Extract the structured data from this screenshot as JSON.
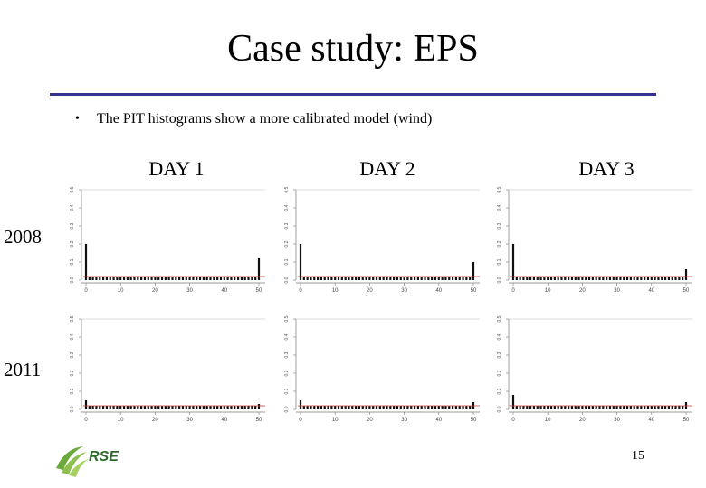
{
  "slide": {
    "title": "Case study: EPS",
    "bullet_symbol": "•",
    "bullet_text": "The PIT histograms show a more calibrated model (wind)",
    "day_labels": [
      "DAY 1",
      "DAY 2",
      "DAY 3"
    ],
    "year_labels": [
      "2008",
      "2011"
    ],
    "page_number": "15",
    "accent_color": "#34348f",
    "reference_line_color": "#cc3333"
  },
  "logo": {
    "text": "RSE",
    "icon": "rse-logo-swoosh"
  },
  "chart_data": [
    {
      "type": "bar",
      "panel": "2008-day1",
      "ylim": [
        0,
        0.5
      ],
      "yticks": [
        "0.0",
        "0.1",
        "0.2",
        "0.3",
        "0.4",
        "0.5"
      ],
      "xticks": [
        "0",
        "10",
        "20",
        "30",
        "40",
        "50"
      ],
      "reference": 0.02,
      "values": [
        0.2,
        0.02,
        0.02,
        0.02,
        0.02,
        0.02,
        0.02,
        0.02,
        0.02,
        0.02,
        0.02,
        0.02,
        0.02,
        0.02,
        0.02,
        0.02,
        0.02,
        0.02,
        0.02,
        0.02,
        0.02,
        0.02,
        0.02,
        0.02,
        0.02,
        0.02,
        0.02,
        0.02,
        0.02,
        0.02,
        0.02,
        0.02,
        0.02,
        0.02,
        0.02,
        0.02,
        0.02,
        0.02,
        0.02,
        0.02,
        0.02,
        0.02,
        0.02,
        0.02,
        0.02,
        0.02,
        0.02,
        0.02,
        0.02,
        0.02,
        0.12
      ]
    },
    {
      "type": "bar",
      "panel": "2008-day2",
      "ylim": [
        0,
        0.5
      ],
      "yticks": [
        "0.0",
        "0.1",
        "0.2",
        "0.3",
        "0.4",
        "0.5"
      ],
      "xticks": [
        "0",
        "10",
        "20",
        "30",
        "40",
        "50"
      ],
      "reference": 0.02,
      "values": [
        0.2,
        0.02,
        0.02,
        0.02,
        0.02,
        0.02,
        0.02,
        0.02,
        0.02,
        0.02,
        0.02,
        0.02,
        0.02,
        0.02,
        0.02,
        0.02,
        0.02,
        0.02,
        0.02,
        0.02,
        0.02,
        0.02,
        0.02,
        0.02,
        0.02,
        0.02,
        0.02,
        0.02,
        0.02,
        0.02,
        0.02,
        0.02,
        0.02,
        0.02,
        0.02,
        0.02,
        0.02,
        0.02,
        0.02,
        0.02,
        0.02,
        0.02,
        0.02,
        0.02,
        0.02,
        0.02,
        0.02,
        0.02,
        0.02,
        0.02,
        0.1
      ]
    },
    {
      "type": "bar",
      "panel": "2008-day3",
      "ylim": [
        0,
        0.5
      ],
      "yticks": [
        "0.0",
        "0.1",
        "0.2",
        "0.3",
        "0.4",
        "0.5"
      ],
      "xticks": [
        "0",
        "10",
        "20",
        "30",
        "40",
        "50"
      ],
      "reference": 0.02,
      "values": [
        0.2,
        0.02,
        0.02,
        0.02,
        0.02,
        0.02,
        0.02,
        0.02,
        0.02,
        0.02,
        0.02,
        0.02,
        0.02,
        0.02,
        0.02,
        0.02,
        0.02,
        0.02,
        0.02,
        0.02,
        0.02,
        0.02,
        0.02,
        0.02,
        0.02,
        0.02,
        0.02,
        0.02,
        0.02,
        0.02,
        0.02,
        0.02,
        0.02,
        0.02,
        0.02,
        0.02,
        0.02,
        0.02,
        0.02,
        0.02,
        0.02,
        0.02,
        0.02,
        0.02,
        0.02,
        0.02,
        0.02,
        0.02,
        0.02,
        0.02,
        0.06
      ]
    },
    {
      "type": "bar",
      "panel": "2011-day1",
      "ylim": [
        0,
        0.5
      ],
      "yticks": [
        "0.0",
        "0.1",
        "0.2",
        "0.3",
        "0.4",
        "0.5"
      ],
      "xticks": [
        "0",
        "10",
        "20",
        "30",
        "40",
        "50"
      ],
      "reference": 0.02,
      "values": [
        0.05,
        0.02,
        0.02,
        0.02,
        0.02,
        0.02,
        0.02,
        0.02,
        0.02,
        0.02,
        0.02,
        0.02,
        0.02,
        0.02,
        0.02,
        0.02,
        0.02,
        0.02,
        0.02,
        0.02,
        0.02,
        0.02,
        0.02,
        0.02,
        0.02,
        0.02,
        0.02,
        0.02,
        0.02,
        0.02,
        0.02,
        0.02,
        0.02,
        0.02,
        0.02,
        0.02,
        0.02,
        0.02,
        0.02,
        0.02,
        0.02,
        0.02,
        0.02,
        0.02,
        0.02,
        0.02,
        0.02,
        0.02,
        0.02,
        0.02,
        0.03
      ]
    },
    {
      "type": "bar",
      "panel": "2011-day2",
      "ylim": [
        0,
        0.5
      ],
      "yticks": [
        "0.0",
        "0.1",
        "0.2",
        "0.3",
        "0.4",
        "0.5"
      ],
      "xticks": [
        "0",
        "10",
        "20",
        "30",
        "40",
        "50"
      ],
      "reference": 0.02,
      "values": [
        0.05,
        0.02,
        0.02,
        0.02,
        0.02,
        0.02,
        0.02,
        0.02,
        0.02,
        0.02,
        0.02,
        0.02,
        0.02,
        0.02,
        0.02,
        0.02,
        0.02,
        0.02,
        0.02,
        0.02,
        0.02,
        0.02,
        0.02,
        0.02,
        0.02,
        0.02,
        0.02,
        0.02,
        0.02,
        0.02,
        0.02,
        0.02,
        0.02,
        0.02,
        0.02,
        0.02,
        0.02,
        0.02,
        0.02,
        0.02,
        0.02,
        0.02,
        0.02,
        0.02,
        0.02,
        0.02,
        0.02,
        0.02,
        0.02,
        0.02,
        0.04
      ]
    },
    {
      "type": "bar",
      "panel": "2011-day3",
      "ylim": [
        0,
        0.5
      ],
      "yticks": [
        "0.0",
        "0.1",
        "0.2",
        "0.3",
        "0.4",
        "0.5"
      ],
      "xticks": [
        "0",
        "10",
        "20",
        "30",
        "40",
        "50"
      ],
      "reference": 0.02,
      "values": [
        0.08,
        0.02,
        0.02,
        0.02,
        0.02,
        0.02,
        0.02,
        0.02,
        0.02,
        0.02,
        0.02,
        0.02,
        0.02,
        0.02,
        0.02,
        0.02,
        0.02,
        0.02,
        0.02,
        0.02,
        0.02,
        0.02,
        0.02,
        0.02,
        0.02,
        0.02,
        0.02,
        0.02,
        0.02,
        0.02,
        0.02,
        0.02,
        0.02,
        0.02,
        0.02,
        0.02,
        0.02,
        0.02,
        0.02,
        0.02,
        0.02,
        0.02,
        0.02,
        0.02,
        0.02,
        0.02,
        0.02,
        0.02,
        0.02,
        0.02,
        0.04
      ]
    }
  ]
}
